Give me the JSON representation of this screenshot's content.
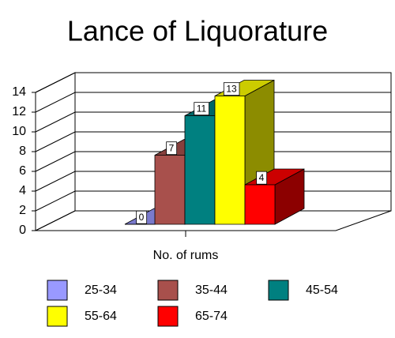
{
  "chart_data": {
    "type": "bar3d",
    "title": "Lance of Liquorature",
    "categories": [
      "No. of rums"
    ],
    "series": [
      {
        "name": "25-34",
        "color": "#9999ff",
        "values": [
          0
        ]
      },
      {
        "name": "35-44",
        "color": "#a8504c",
        "values": [
          7
        ]
      },
      {
        "name": "45-54",
        "color": "#008080",
        "values": [
          11
        ]
      },
      {
        "name": "55-64",
        "color": "#ffff00",
        "values": [
          13
        ]
      },
      {
        "name": "65-74",
        "color": "#ff0000",
        "values": [
          4
        ]
      }
    ],
    "ylim": [
      0,
      14
    ],
    "yticks": [
      0,
      2,
      4,
      6,
      8,
      10,
      12,
      14
    ],
    "grid": true,
    "legend": "bottom"
  }
}
